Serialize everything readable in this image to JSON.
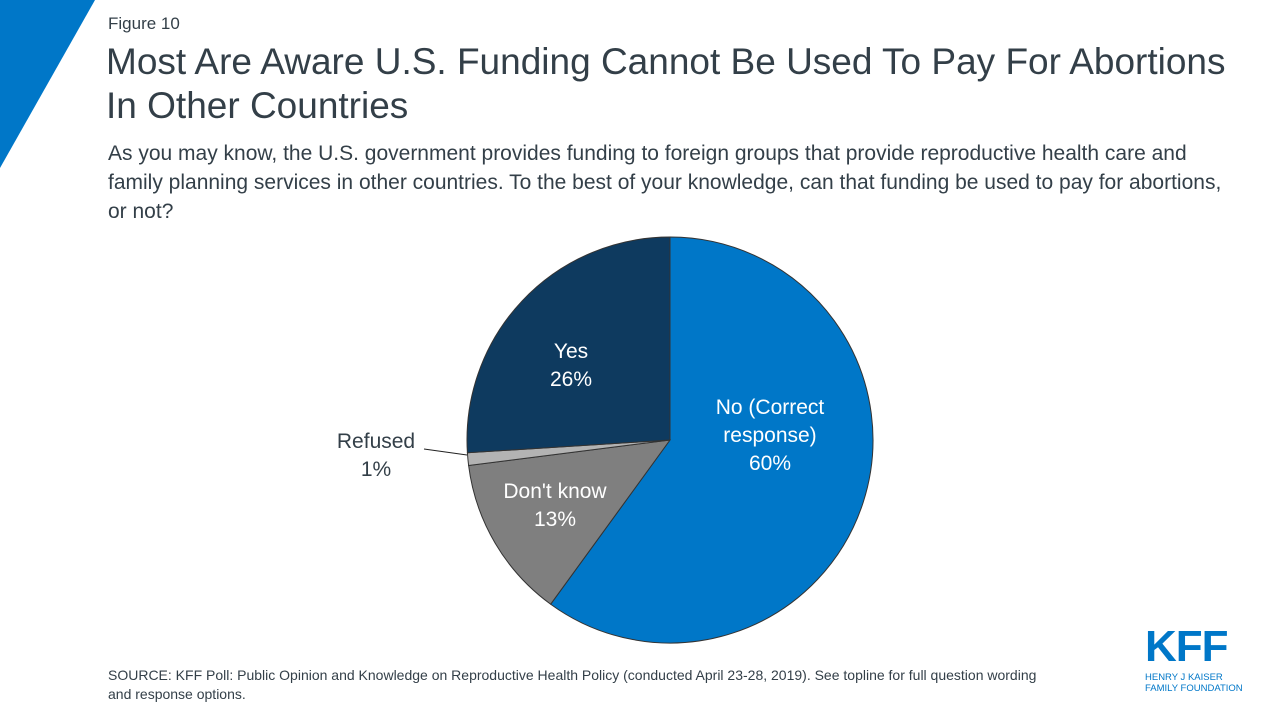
{
  "figure_label": "Figure 10",
  "title": "Most Are Aware U.S. Funding Cannot Be Used To Pay For Abortions In Other Countries",
  "subtitle": "As you may know, the U.S. government provides funding to foreign groups that provide reproductive health care and family planning services in other countries. To the best of your knowledge, can that funding be used to pay for abortions, or not?",
  "source": "SOURCE: KFF Poll: Public Opinion and Knowledge on Reproductive Health Policy (conducted April 23-28, 2019). See topline for full question wording and response options.",
  "logo": {
    "mark": "KFF",
    "line1": "HENRY J KAISER",
    "line2": "FAMILY FOUNDATION"
  },
  "accent": "#0077c8",
  "chart_data": {
    "type": "pie",
    "start": "top, clockwise",
    "slices": [
      {
        "label": "No (Correct response)",
        "line1": "No (Correct",
        "line2": "response)",
        "value": 60,
        "value_label": "60%",
        "color": "#0077c8",
        "text_color": "#ffffff"
      },
      {
        "label": "Don't know",
        "line1": "Don't know",
        "value": 13,
        "value_label": "13%",
        "color": "#7f7f7f",
        "text_color": "#ffffff"
      },
      {
        "label": "Refused",
        "line1": "Refused",
        "value": 1,
        "value_label": "1%",
        "color": "#b3b3b3",
        "text_color": "#333f48"
      },
      {
        "label": "Yes",
        "line1": "Yes",
        "value": 26,
        "value_label": "26%",
        "color": "#0e3a5f",
        "text_color": "#ffffff"
      }
    ]
  }
}
